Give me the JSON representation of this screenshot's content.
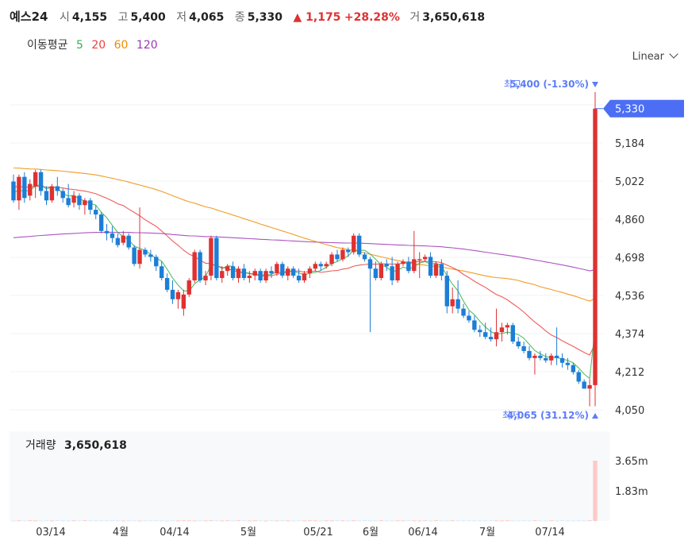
{
  "header": {
    "name": "예스24",
    "open_label": "시",
    "open": "4,155",
    "high_label": "고",
    "high": "5,400",
    "low_label": "저",
    "low": "4,065",
    "close_label": "종",
    "close": "5,330",
    "change": "▲ 1,175",
    "change_pct": "+28.28%",
    "volume_label": "거",
    "volume": "3,650,618"
  },
  "ma_legend": {
    "title": "이동평균",
    "periods": [
      {
        "label": "5",
        "color": "#37b24d"
      },
      {
        "label": "20",
        "color": "#f03e3e"
      },
      {
        "label": "60",
        "color": "#f08c00"
      },
      {
        "label": "120",
        "color": "#9c36b5"
      }
    ]
  },
  "scale_selector": "Linear",
  "markers": {
    "high_text": "최고",
    "high_value": "5,400 (-1.30%)",
    "low_text": "최저",
    "low_value": "4,065 (31.12%)"
  },
  "colors": {
    "up": "#e03131",
    "down": "#1c7ed6",
    "label_bg": "#4c6ef5",
    "volume_up": "#ffc9c9",
    "volume_down": "#d0ebff",
    "marker_text": "#5c7cfa"
  },
  "chart_data": {
    "type": "candlestick",
    "current_price": "5,330",
    "y_ticks": [
      "5,184",
      "5,022",
      "4,860",
      "4,698",
      "4,536",
      "4,374",
      "4,212",
      "4,050"
    ],
    "ylim": [
      4050,
      5400
    ],
    "x_ticks": [
      "03/14",
      "4월",
      "04/14",
      "5월",
      "05/21",
      "6월",
      "06/14",
      "7월",
      "07/14"
    ],
    "volume": {
      "label": "거래량",
      "value": "3,650,618",
      "y_ticks": [
        "3.65m",
        "1.83m"
      ],
      "last": 3650618
    },
    "ohlc": [
      [
        5020,
        5050,
        4930,
        4940
      ],
      [
        4940,
        5050,
        4900,
        5040
      ],
      [
        5040,
        5060,
        4930,
        4950
      ],
      [
        4960,
        5030,
        4940,
        5010
      ],
      [
        5000,
        5070,
        4950,
        5060
      ],
      [
        5060,
        5070,
        4960,
        4980
      ],
      [
        4980,
        5000,
        4920,
        4940
      ],
      [
        4940,
        5010,
        4930,
        5000
      ],
      [
        5000,
        5040,
        4960,
        4980
      ],
      [
        4980,
        4990,
        4930,
        4950
      ],
      [
        4950,
        5010,
        4910,
        4920
      ],
      [
        4930,
        4980,
        4910,
        4960
      ],
      [
        4960,
        4970,
        4900,
        4920
      ],
      [
        4920,
        4950,
        4880,
        4940
      ],
      [
        4940,
        4950,
        4880,
        4900
      ],
      [
        4900,
        4920,
        4860,
        4880
      ],
      [
        4880,
        4890,
        4800,
        4810
      ],
      [
        4810,
        4840,
        4770,
        4800
      ],
      [
        4800,
        4830,
        4760,
        4780
      ],
      [
        4780,
        4800,
        4740,
        4750
      ],
      [
        4760,
        4810,
        4750,
        4790
      ],
      [
        4790,
        4800,
        4730,
        4740
      ],
      [
        4740,
        4750,
        4660,
        4670
      ],
      [
        4670,
        4910,
        4650,
        4730
      ],
      [
        4730,
        4740,
        4700,
        4710
      ],
      [
        4710,
        4730,
        4680,
        4700
      ],
      [
        4700,
        4710,
        4640,
        4660
      ],
      [
        4660,
        4680,
        4600,
        4610
      ],
      [
        4610,
        4630,
        4550,
        4560
      ],
      [
        4560,
        4600,
        4500,
        4520
      ],
      [
        4520,
        4560,
        4480,
        4550
      ],
      [
        4480,
        4560,
        4450,
        4540
      ],
      [
        4540,
        4610,
        4530,
        4600
      ],
      [
        4600,
        4730,
        4590,
        4720
      ],
      [
        4720,
        4730,
        4590,
        4600
      ],
      [
        4600,
        4640,
        4580,
        4620
      ],
      [
        4620,
        4790,
        4600,
        4780
      ],
      [
        4780,
        4790,
        4600,
        4610
      ],
      [
        4610,
        4660,
        4590,
        4640
      ],
      [
        4640,
        4670,
        4620,
        4660
      ],
      [
        4660,
        4680,
        4600,
        4610
      ],
      [
        4610,
        4660,
        4590,
        4650
      ],
      [
        4650,
        4670,
        4600,
        4610
      ],
      [
        4610,
        4640,
        4590,
        4620
      ],
      [
        4620,
        4650,
        4600,
        4640
      ],
      [
        4640,
        4650,
        4590,
        4600
      ],
      [
        4600,
        4650,
        4590,
        4640
      ],
      [
        4640,
        4660,
        4610,
        4630
      ],
      [
        4630,
        4680,
        4620,
        4670
      ],
      [
        4670,
        4680,
        4610,
        4620
      ],
      [
        4620,
        4660,
        4600,
        4650
      ],
      [
        4650,
        4660,
        4610,
        4620
      ],
      [
        4620,
        4650,
        4590,
        4600
      ],
      [
        4600,
        4640,
        4590,
        4630
      ],
      [
        4630,
        4660,
        4610,
        4650
      ],
      [
        4650,
        4680,
        4640,
        4670
      ],
      [
        4670,
        4680,
        4640,
        4660
      ],
      [
        4660,
        4680,
        4650,
        4670
      ],
      [
        4670,
        4720,
        4660,
        4710
      ],
      [
        4710,
        4730,
        4680,
        4690
      ],
      [
        4690,
        4740,
        4680,
        4730
      ],
      [
        4730,
        4740,
        4700,
        4720
      ],
      [
        4720,
        4800,
        4710,
        4790
      ],
      [
        4790,
        4800,
        4700,
        4710
      ],
      [
        4710,
        4720,
        4680,
        4690
      ],
      [
        4690,
        4700,
        4380,
        4650
      ],
      [
        4650,
        4680,
        4600,
        4610
      ],
      [
        4610,
        4680,
        4600,
        4670
      ],
      [
        4670,
        4690,
        4640,
        4660
      ],
      [
        4660,
        4700,
        4580,
        4600
      ],
      [
        4600,
        4680,
        4590,
        4670
      ],
      [
        4670,
        4690,
        4660,
        4680
      ],
      [
        4680,
        4700,
        4630,
        4640
      ],
      [
        4640,
        4810,
        4630,
        4690
      ],
      [
        4690,
        4720,
        4610,
        4690
      ],
      [
        4690,
        4710,
        4680,
        4700
      ],
      [
        4700,
        4720,
        4610,
        4620
      ],
      [
        4620,
        4680,
        4610,
        4670
      ],
      [
        4670,
        4690,
        4600,
        4620
      ],
      [
        4620,
        4640,
        4460,
        4490
      ],
      [
        4490,
        4570,
        4460,
        4520
      ],
      [
        4520,
        4600,
        4460,
        4480
      ],
      [
        4480,
        4500,
        4440,
        4450
      ],
      [
        4450,
        4470,
        4420,
        4430
      ],
      [
        4430,
        4450,
        4380,
        4390
      ],
      [
        4390,
        4410,
        4360,
        4380
      ],
      [
        4380,
        4420,
        4350,
        4360
      ],
      [
        4360,
        4400,
        4340,
        4350
      ],
      [
        4350,
        4480,
        4320,
        4380
      ],
      [
        4380,
        4420,
        4340,
        4400
      ],
      [
        4400,
        4420,
        4370,
        4410
      ],
      [
        4410,
        4420,
        4330,
        4340
      ],
      [
        4340,
        4360,
        4310,
        4320
      ],
      [
        4320,
        4340,
        4290,
        4300
      ],
      [
        4300,
        4320,
        4260,
        4270
      ],
      [
        4270,
        4290,
        4200,
        4280
      ],
      [
        4280,
        4300,
        4260,
        4270
      ],
      [
        4270,
        4290,
        4250,
        4260
      ],
      [
        4260,
        4290,
        4240,
        4280
      ],
      [
        4280,
        4400,
        4240,
        4270
      ],
      [
        4270,
        4290,
        4230,
        4250
      ],
      [
        4250,
        4270,
        4220,
        4240
      ],
      [
        4240,
        4250,
        4200,
        4210
      ],
      [
        4210,
        4220,
        4160,
        4170
      ],
      [
        4170,
        4180,
        4140,
        4140
      ],
      [
        4140,
        4180,
        4065,
        4155
      ],
      [
        4155,
        5400,
        4065,
        5330
      ]
    ]
  }
}
